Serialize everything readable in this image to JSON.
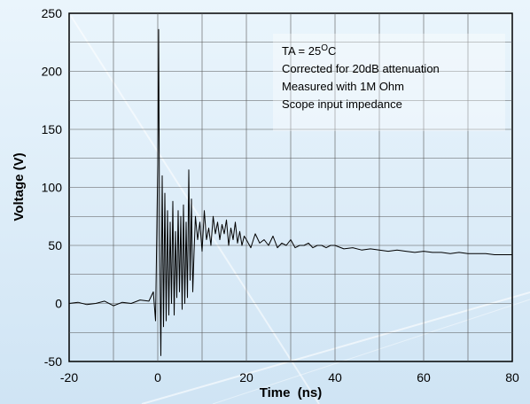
{
  "chart_data": {
    "type": "line",
    "xlabel": "Time  (ns)",
    "ylabel": "Voltage (V)",
    "xlim": [
      -20,
      80
    ],
    "ylim": [
      -50,
      250
    ],
    "x_ticks": [
      -20,
      0,
      20,
      40,
      60,
      80
    ],
    "y_ticks": [
      -50,
      0,
      50,
      100,
      150,
      200,
      250
    ],
    "grid": true,
    "annotations": [
      {
        "text": "TA = 25",
        "sup": "O",
        "suffix": "C"
      },
      {
        "text": "Corrected for 20dB attenuation"
      },
      {
        "text": "Measured with 1M Ohm"
      },
      {
        "text": "Scope input impedance"
      }
    ],
    "series": [
      {
        "color": "#000000",
        "x": [
          -20,
          -18,
          -16,
          -14,
          -12,
          -10,
          -8,
          -6,
          -4,
          -2,
          -1,
          -0.5,
          0,
          0.2,
          0.4,
          0.7,
          1.0,
          1.3,
          1.6,
          1.9,
          2.2,
          2.5,
          2.8,
          3.1,
          3.4,
          3.7,
          4.0,
          4.3,
          4.6,
          4.9,
          5.2,
          5.5,
          5.8,
          6.1,
          6.4,
          6.7,
          7.0,
          7.3,
          7.6,
          7.9,
          8.2,
          8.5,
          9,
          9.5,
          10,
          10.5,
          11,
          11.5,
          12,
          12.5,
          13,
          13.5,
          14,
          14.5,
          15,
          15.5,
          16,
          16.5,
          17,
          17.5,
          18,
          18.5,
          19,
          19.5,
          20,
          21,
          22,
          23,
          24,
          25,
          26,
          27,
          28,
          29,
          30,
          31,
          32,
          33,
          34,
          35,
          36,
          37,
          38,
          39,
          40,
          42,
          44,
          46,
          48,
          50,
          52,
          54,
          56,
          58,
          60,
          62,
          64,
          66,
          68,
          70,
          72,
          74,
          76,
          78,
          80
        ],
        "y": [
          0,
          1,
          -1,
          0,
          2,
          -2,
          1,
          0,
          3,
          2,
          10,
          -15,
          120,
          236,
          60,
          -45,
          110,
          -20,
          95,
          -15,
          80,
          -10,
          70,
          0,
          88,
          -10,
          62,
          5,
          80,
          10,
          75,
          -5,
          85,
          0,
          70,
          5,
          115,
          20,
          90,
          10,
          45,
          75,
          55,
          70,
          45,
          80,
          55,
          65,
          50,
          75,
          60,
          70,
          55,
          68,
          60,
          72,
          50,
          65,
          55,
          70,
          52,
          62,
          50,
          58,
          55,
          48,
          60,
          52,
          55,
          50,
          58,
          48,
          52,
          50,
          55,
          48,
          50,
          50,
          52,
          48,
          50,
          50,
          48,
          50,
          50,
          47,
          48,
          46,
          47,
          46,
          45,
          46,
          45,
          44,
          45,
          44,
          44,
          43,
          44,
          43,
          43,
          43,
          42,
          42,
          42
        ]
      }
    ]
  }
}
